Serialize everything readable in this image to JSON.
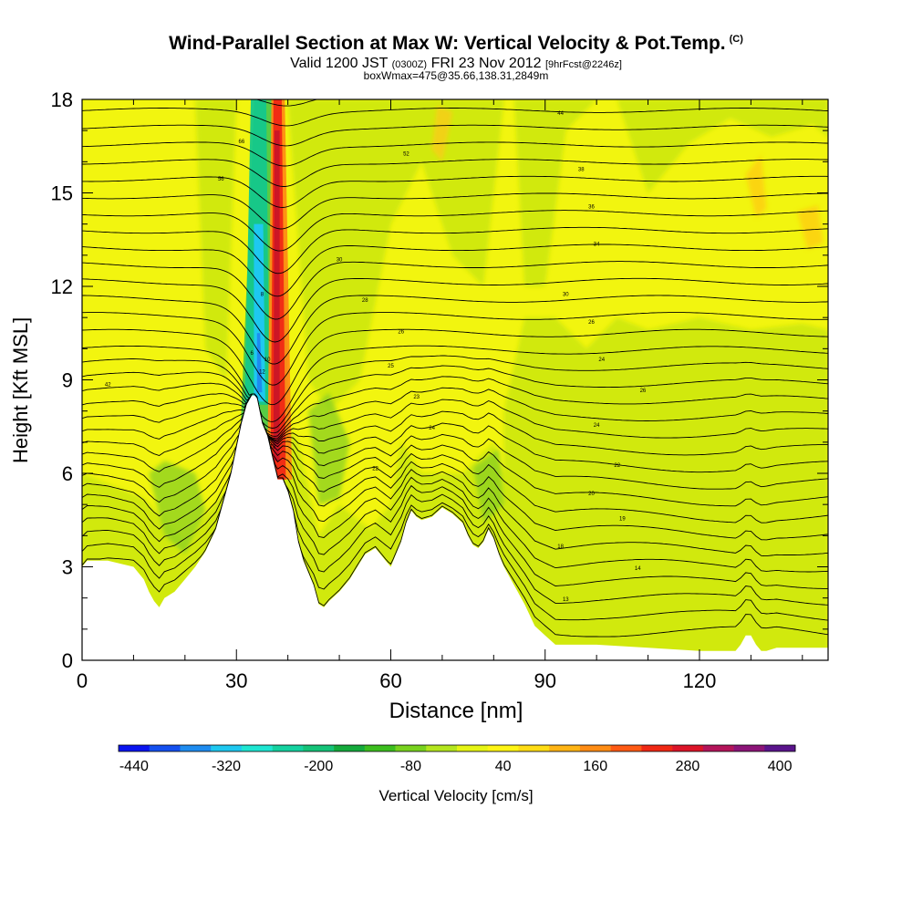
{
  "header": {
    "title": "Wind-Parallel Section at Max W: Vertical Velocity & Pot.Temp.",
    "title_tag": "(C)",
    "valid_main": "Valid 1200 JST",
    "valid_utc": "(0300Z)",
    "valid_date": "FRI 23 Nov 2012",
    "forecast_tag": "[9hrFcst@2246z]",
    "box_info": "boxWmax=475@35.66,138.31,2849m"
  },
  "chart_data": {
    "type": "heatmap",
    "title": "Wind-Parallel Section at Max W: Vertical Velocity & Pot.Temp.",
    "xlabel": "Distance [nm]",
    "ylabel": "Height [Kft MSL]",
    "xlim": [
      0,
      145
    ],
    "ylim": [
      0,
      18
    ],
    "x_ticks": [
      0,
      30,
      60,
      90,
      120
    ],
    "y_ticks": [
      0,
      3,
      6,
      9,
      12,
      15,
      18
    ],
    "colorbar": {
      "label": "Vertical Velocity [cm/s]",
      "tick_labels": [
        "-440",
        "-320",
        "-200",
        "-80",
        "40",
        "160",
        "280",
        "400"
      ],
      "tick_values": [
        -440,
        -320,
        -200,
        -80,
        40,
        160,
        280,
        400
      ],
      "colors": [
        "#0a14f0",
        "#1450f0",
        "#1e8cf0",
        "#1ec8f0",
        "#1ee6d2",
        "#14d2a0",
        "#14c378",
        "#14aa3c",
        "#3cbe1e",
        "#78d21e",
        "#b4e61e",
        "#e6f514",
        "#fff514",
        "#ffdc14",
        "#ffb414",
        "#ff8c14",
        "#ff5a14",
        "#f02814",
        "#dc1428",
        "#b4145a",
        "#8c1478",
        "#5a148c"
      ]
    },
    "terrain_profile": {
      "x": [
        0,
        1,
        5,
        10,
        12,
        13,
        14,
        15,
        16,
        18,
        20,
        22,
        24,
        26,
        27,
        28,
        29,
        30,
        31,
        32,
        33,
        33.5,
        34,
        35,
        36,
        37,
        38,
        39,
        40,
        41,
        42,
        43,
        44,
        45,
        46,
        47,
        48,
        50,
        52,
        55,
        57,
        59,
        60,
        61,
        62,
        63,
        64,
        65,
        66,
        68,
        70,
        72,
        74,
        75,
        76,
        77,
        78,
        79,
        80,
        81,
        82,
        84,
        86,
        88,
        90,
        92,
        95,
        100,
        110,
        120,
        127,
        128,
        129,
        130,
        131,
        132,
        133,
        135,
        140,
        145
      ],
      "height": [
        3.0,
        3.2,
        3.2,
        3.0,
        2.6,
        2.2,
        1.9,
        1.7,
        2.0,
        2.2,
        2.6,
        3.0,
        3.5,
        4.2,
        4.8,
        5.4,
        6.0,
        6.8,
        7.6,
        8.2,
        8.5,
        8.5,
        8.4,
        7.6,
        7.2,
        6.5,
        5.8,
        5.8,
        5.4,
        4.8,
        3.8,
        3.2,
        2.8,
        2.4,
        1.8,
        1.7,
        1.9,
        2.2,
        2.6,
        3.4,
        3.6,
        3.2,
        3.0,
        3.4,
        3.8,
        4.4,
        4.8,
        4.6,
        4.5,
        4.6,
        4.9,
        4.7,
        4.4,
        4.0,
        3.7,
        3.6,
        3.8,
        4.2,
        3.9,
        3.4,
        3.0,
        2.4,
        1.8,
        1.1,
        0.8,
        0.5,
        0.5,
        0.5,
        0.4,
        0.3,
        0.3,
        0.5,
        0.8,
        0.8,
        0.5,
        0.3,
        0.3,
        0.4,
        0.4,
        0.4
      ]
    },
    "isentrope_labels": [
      {
        "x": 5,
        "y": 8.8,
        "text": "42"
      },
      {
        "x": 31,
        "y": 16.6,
        "text": "66"
      },
      {
        "x": 27,
        "y": 15.4,
        "text": "56"
      },
      {
        "x": 63,
        "y": 16.2,
        "text": "52"
      },
      {
        "x": 93,
        "y": 17.5,
        "text": "44"
      },
      {
        "x": 97,
        "y": 15.7,
        "text": "38"
      },
      {
        "x": 99,
        "y": 14.5,
        "text": "36"
      },
      {
        "x": 100,
        "y": 13.3,
        "text": "34"
      },
      {
        "x": 94,
        "y": 11.7,
        "text": "30"
      },
      {
        "x": 99,
        "y": 10.8,
        "text": "26"
      },
      {
        "x": 101,
        "y": 9.6,
        "text": "24"
      },
      {
        "x": 109,
        "y": 8.6,
        "text": "26"
      },
      {
        "x": 100,
        "y": 7.5,
        "text": "24"
      },
      {
        "x": 104,
        "y": 6.2,
        "text": "22"
      },
      {
        "x": 99,
        "y": 5.3,
        "text": "20"
      },
      {
        "x": 105,
        "y": 4.5,
        "text": "19"
      },
      {
        "x": 93,
        "y": 3.6,
        "text": "18"
      },
      {
        "x": 108,
        "y": 2.9,
        "text": "14"
      },
      {
        "x": 94,
        "y": 1.9,
        "text": "13"
      },
      {
        "x": 50,
        "y": 12.8,
        "text": "30"
      },
      {
        "x": 55,
        "y": 11.5,
        "text": "28"
      },
      {
        "x": 62,
        "y": 10.5,
        "text": "26"
      },
      {
        "x": 60,
        "y": 9.4,
        "text": "25"
      },
      {
        "x": 65,
        "y": 8.4,
        "text": "23"
      },
      {
        "x": 68,
        "y": 7.4,
        "text": "24"
      },
      {
        "x": 57,
        "y": 6.1,
        "text": "22"
      },
      {
        "x": 35,
        "y": 11.7,
        "text": "8"
      },
      {
        "x": 33,
        "y": 9.8,
        "text": "6"
      },
      {
        "x": 36,
        "y": 9.6,
        "text": "10"
      },
      {
        "x": 35,
        "y": 9.2,
        "text": "12"
      },
      {
        "x": 37,
        "y": 6.8,
        "text": "13"
      }
    ]
  }
}
